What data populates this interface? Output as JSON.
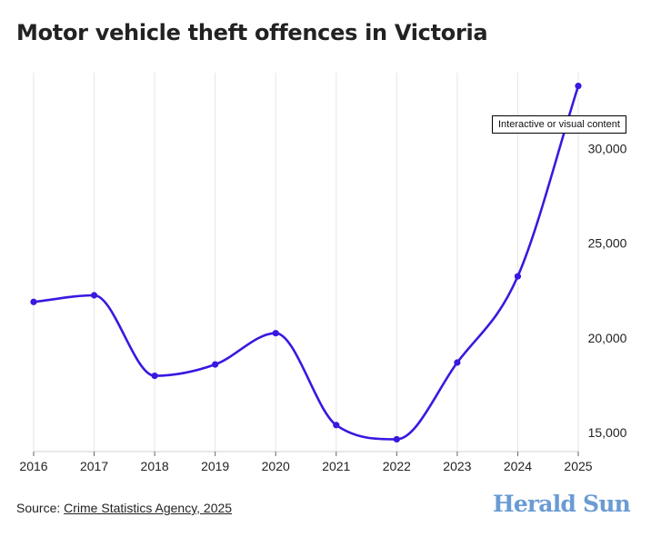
{
  "title": "Motor vehicle theft offences in Victoria",
  "tooltip": "Interactive or visual content",
  "source": {
    "prefix": "Source: ",
    "link_text": "Crime Statistics Agency, 2025"
  },
  "brand": {
    "name": "Herald Sun",
    "color": "#6a9bd3"
  },
  "colors": {
    "line": "#3a18e0",
    "grid": "#e6e6e6",
    "axis": "#d0d0d0"
  },
  "chart_data": {
    "type": "line",
    "title": "Motor vehicle theft offences in Victoria",
    "xlabel": "",
    "ylabel": "",
    "x": [
      2016,
      2017,
      2018,
      2019,
      2020,
      2021,
      2022,
      2023,
      2024,
      2025
    ],
    "x_tick_labels": [
      "2016",
      "2017",
      "2018",
      "2019",
      "2020",
      "2021",
      "2022",
      "2023",
      "2024",
      "2025"
    ],
    "values": [
      21900,
      22250,
      18000,
      18600,
      20250,
      15400,
      14650,
      18700,
      23250,
      33300
    ],
    "y_ticks": [
      15000,
      20000,
      25000,
      30000
    ],
    "y_tick_labels": [
      "15,000",
      "20,000",
      "25,000",
      "30,000"
    ],
    "ylim": [
      14000,
      34000
    ],
    "y_axis_position": "right",
    "grid": "vertical-light",
    "curve": "smooth",
    "markers": true,
    "legend": "none"
  }
}
